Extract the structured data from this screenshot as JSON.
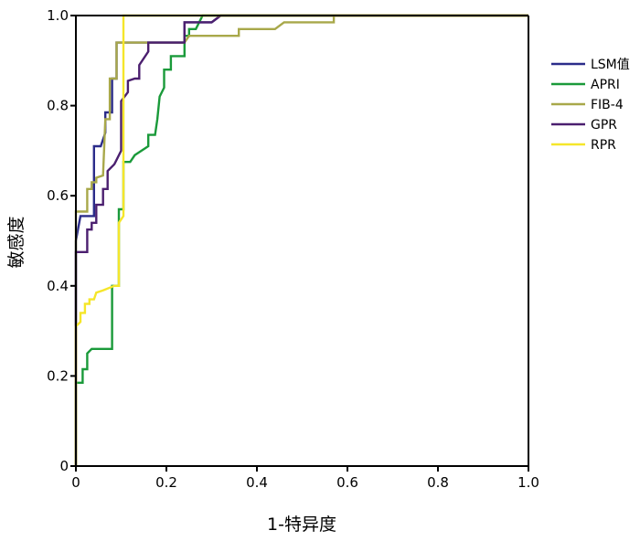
{
  "chart_data": {
    "type": "line",
    "title": "",
    "xlabel": "1-特异度",
    "ylabel": "敏感度",
    "xlim": [
      0,
      1
    ],
    "ylim": [
      0,
      1
    ],
    "xticks": [
      "0",
      "0.2",
      "0.4",
      "0.6",
      "0.8",
      "1.0"
    ],
    "yticks": [
      "0",
      "0.2",
      "0.4",
      "0.6",
      "0.8",
      "1.0"
    ],
    "grid": false,
    "legend_position": "right",
    "series": [
      {
        "name": "LSM值",
        "color": "#2b2c8a",
        "points": [
          [
            0,
            0
          ],
          [
            0,
            0.5
          ],
          [
            0.01,
            0.555
          ],
          [
            0.04,
            0.555
          ],
          [
            0.04,
            0.71
          ],
          [
            0.055,
            0.71
          ],
          [
            0.065,
            0.74
          ],
          [
            0.065,
            0.785
          ],
          [
            0.08,
            0.785
          ],
          [
            0.08,
            0.86
          ],
          [
            0.09,
            0.86
          ],
          [
            0.09,
            0.94
          ],
          [
            0.24,
            0.94
          ],
          [
            0.24,
            0.985
          ],
          [
            0.3,
            0.985
          ],
          [
            0.32,
            1
          ],
          [
            1,
            1
          ]
        ]
      },
      {
        "name": "APRI",
        "color": "#1a9a3a",
        "points": [
          [
            0,
            0
          ],
          [
            0,
            0.185
          ],
          [
            0.015,
            0.185
          ],
          [
            0.015,
            0.215
          ],
          [
            0.025,
            0.215
          ],
          [
            0.025,
            0.25
          ],
          [
            0.035,
            0.26
          ],
          [
            0.08,
            0.26
          ],
          [
            0.08,
            0.4
          ],
          [
            0.095,
            0.4
          ],
          [
            0.095,
            0.57
          ],
          [
            0.105,
            0.57
          ],
          [
            0.105,
            0.675
          ],
          [
            0.12,
            0.675
          ],
          [
            0.13,
            0.69
          ],
          [
            0.16,
            0.71
          ],
          [
            0.16,
            0.735
          ],
          [
            0.175,
            0.735
          ],
          [
            0.18,
            0.77
          ],
          [
            0.185,
            0.82
          ],
          [
            0.195,
            0.84
          ],
          [
            0.195,
            0.88
          ],
          [
            0.21,
            0.88
          ],
          [
            0.21,
            0.91
          ],
          [
            0.24,
            0.91
          ],
          [
            0.24,
            0.955
          ],
          [
            0.25,
            0.955
          ],
          [
            0.25,
            0.97
          ],
          [
            0.265,
            0.97
          ],
          [
            0.28,
            1
          ],
          [
            1,
            1
          ]
        ]
      },
      {
        "name": "FIB-4",
        "color": "#a8a84a",
        "points": [
          [
            0,
            0
          ],
          [
            0,
            0.565
          ],
          [
            0.025,
            0.565
          ],
          [
            0.025,
            0.615
          ],
          [
            0.035,
            0.615
          ],
          [
            0.035,
            0.63
          ],
          [
            0.045,
            0.63
          ],
          [
            0.045,
            0.64
          ],
          [
            0.06,
            0.645
          ],
          [
            0.065,
            0.77
          ],
          [
            0.075,
            0.77
          ],
          [
            0.075,
            0.86
          ],
          [
            0.09,
            0.86
          ],
          [
            0.09,
            0.94
          ],
          [
            0.24,
            0.94
          ],
          [
            0.25,
            0.955
          ],
          [
            0.36,
            0.955
          ],
          [
            0.36,
            0.97
          ],
          [
            0.44,
            0.97
          ],
          [
            0.46,
            0.985
          ],
          [
            0.57,
            0.985
          ],
          [
            0.57,
            1
          ],
          [
            1,
            1
          ]
        ]
      },
      {
        "name": "GPR",
        "color": "#4b1f6f",
        "points": [
          [
            0,
            0
          ],
          [
            0,
            0.475
          ],
          [
            0.025,
            0.475
          ],
          [
            0.025,
            0.525
          ],
          [
            0.035,
            0.525
          ],
          [
            0.035,
            0.54
          ],
          [
            0.045,
            0.54
          ],
          [
            0.045,
            0.58
          ],
          [
            0.06,
            0.58
          ],
          [
            0.06,
            0.615
          ],
          [
            0.07,
            0.615
          ],
          [
            0.07,
            0.655
          ],
          [
            0.085,
            0.67
          ],
          [
            0.1,
            0.7
          ],
          [
            0.1,
            0.81
          ],
          [
            0.115,
            0.83
          ],
          [
            0.115,
            0.855
          ],
          [
            0.13,
            0.86
          ],
          [
            0.14,
            0.86
          ],
          [
            0.14,
            0.89
          ],
          [
            0.16,
            0.92
          ],
          [
            0.16,
            0.94
          ],
          [
            0.24,
            0.94
          ],
          [
            0.24,
            0.985
          ],
          [
            0.3,
            0.985
          ],
          [
            0.32,
            1
          ],
          [
            1,
            1
          ]
        ]
      },
      {
        "name": "RPR",
        "color": "#f5e62a",
        "points": [
          [
            0,
            0
          ],
          [
            0,
            0.31
          ],
          [
            0.01,
            0.32
          ],
          [
            0.01,
            0.34
          ],
          [
            0.02,
            0.34
          ],
          [
            0.02,
            0.36
          ],
          [
            0.03,
            0.36
          ],
          [
            0.03,
            0.37
          ],
          [
            0.04,
            0.37
          ],
          [
            0.045,
            0.385
          ],
          [
            0.06,
            0.39
          ],
          [
            0.085,
            0.4
          ],
          [
            0.095,
            0.4
          ],
          [
            0.095,
            0.54
          ],
          [
            0.105,
            0.555
          ],
          [
            0.105,
            1
          ],
          [
            1,
            1
          ]
        ]
      }
    ]
  }
}
